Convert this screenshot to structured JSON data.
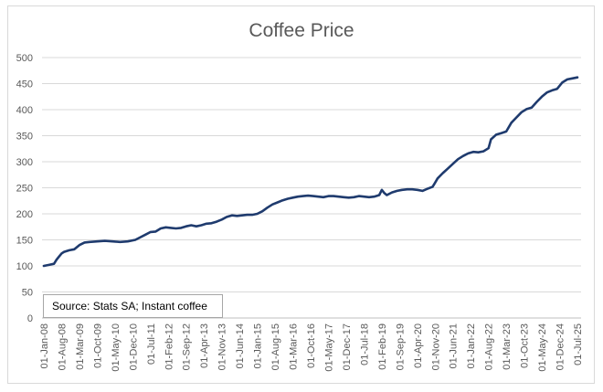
{
  "chart_data": {
    "type": "line",
    "title": "Coffee Price",
    "xlabel": "",
    "ylabel": "",
    "ylim": [
      0,
      500
    ],
    "y_ticks": [
      0,
      50,
      100,
      150,
      200,
      250,
      300,
      350,
      400,
      450,
      500
    ],
    "x_tick_labels": [
      "01-Jan-08",
      "01-Aug-08",
      "01-Mar-09",
      "01-Oct-09",
      "01-May-10",
      "01-Dec-10",
      "01-Jul-11",
      "01-Feb-12",
      "01-Sep-12",
      "01-Apr-13",
      "01-Nov-13",
      "01-Jun-14",
      "01-Jan-15",
      "01-Aug-15",
      "01-Mar-16",
      "01-Oct-16",
      "01-May-17",
      "01-Dec-17",
      "01-Jul-18",
      "01-Feb-19",
      "01-Sep-19",
      "01-Apr-20",
      "01-Nov-20",
      "01-Jun-21",
      "01-Jan-22",
      "01-Aug-22",
      "01-Mar-23",
      "01-Oct-23",
      "01-May-24",
      "01-Dec-24",
      "01-Jul-25"
    ],
    "gridlines": true,
    "line_color": "#1f3b6e",
    "annotation": "Source: Stats SA; Instant coffee",
    "series": [
      {
        "name": "Instant coffee",
        "points": [
          [
            0,
            100
          ],
          [
            2,
            102
          ],
          [
            4,
            104
          ],
          [
            5,
            112
          ],
          [
            6,
            118
          ],
          [
            7,
            124
          ],
          [
            8,
            127
          ],
          [
            10,
            130
          ],
          [
            12,
            132
          ],
          [
            14,
            140
          ],
          [
            16,
            145
          ],
          [
            18,
            146
          ],
          [
            21,
            147
          ],
          [
            24,
            148
          ],
          [
            27,
            147
          ],
          [
            30,
            146
          ],
          [
            33,
            147
          ],
          [
            36,
            150
          ],
          [
            38,
            155
          ],
          [
            40,
            160
          ],
          [
            42,
            165
          ],
          [
            44,
            166
          ],
          [
            46,
            172
          ],
          [
            48,
            174
          ],
          [
            50,
            173
          ],
          [
            52,
            172
          ],
          [
            54,
            173
          ],
          [
            56,
            176
          ],
          [
            58,
            178
          ],
          [
            60,
            176
          ],
          [
            62,
            178
          ],
          [
            64,
            181
          ],
          [
            66,
            182
          ],
          [
            68,
            185
          ],
          [
            70,
            189
          ],
          [
            72,
            194
          ],
          [
            74,
            197
          ],
          [
            76,
            196
          ],
          [
            78,
            197
          ],
          [
            80,
            198
          ],
          [
            82,
            198
          ],
          [
            84,
            200
          ],
          [
            86,
            205
          ],
          [
            88,
            212
          ],
          [
            90,
            218
          ],
          [
            92,
            222
          ],
          [
            94,
            226
          ],
          [
            96,
            229
          ],
          [
            98,
            231
          ],
          [
            100,
            233
          ],
          [
            102,
            234
          ],
          [
            104,
            235
          ],
          [
            106,
            234
          ],
          [
            108,
            233
          ],
          [
            110,
            232
          ],
          [
            112,
            234
          ],
          [
            114,
            234
          ],
          [
            116,
            233
          ],
          [
            118,
            232
          ],
          [
            120,
            231
          ],
          [
            122,
            232
          ],
          [
            124,
            234
          ],
          [
            126,
            233
          ],
          [
            128,
            232
          ],
          [
            130,
            233
          ],
          [
            132,
            236
          ],
          [
            133,
            246
          ],
          [
            134,
            240
          ],
          [
            135,
            236
          ],
          [
            137,
            241
          ],
          [
            139,
            244
          ],
          [
            141,
            246
          ],
          [
            143,
            247
          ],
          [
            145,
            247
          ],
          [
            147,
            246
          ],
          [
            149,
            244
          ],
          [
            151,
            248
          ],
          [
            153,
            252
          ],
          [
            154,
            260
          ],
          [
            155,
            268
          ],
          [
            157,
            278
          ],
          [
            159,
            287
          ],
          [
            161,
            296
          ],
          [
            163,
            305
          ],
          [
            165,
            311
          ],
          [
            167,
            316
          ],
          [
            169,
            319
          ],
          [
            171,
            318
          ],
          [
            173,
            320
          ],
          [
            175,
            326
          ],
          [
            176,
            343
          ],
          [
            178,
            352
          ],
          [
            180,
            355
          ],
          [
            182,
            358
          ],
          [
            184,
            375
          ],
          [
            186,
            385
          ],
          [
            188,
            395
          ],
          [
            190,
            401
          ],
          [
            192,
            404
          ],
          [
            194,
            415
          ],
          [
            196,
            425
          ],
          [
            198,
            433
          ],
          [
            200,
            437
          ],
          [
            202,
            440
          ],
          [
            204,
            452
          ],
          [
            206,
            458
          ],
          [
            208,
            460
          ],
          [
            210,
            462
          ]
        ]
      }
    ]
  }
}
